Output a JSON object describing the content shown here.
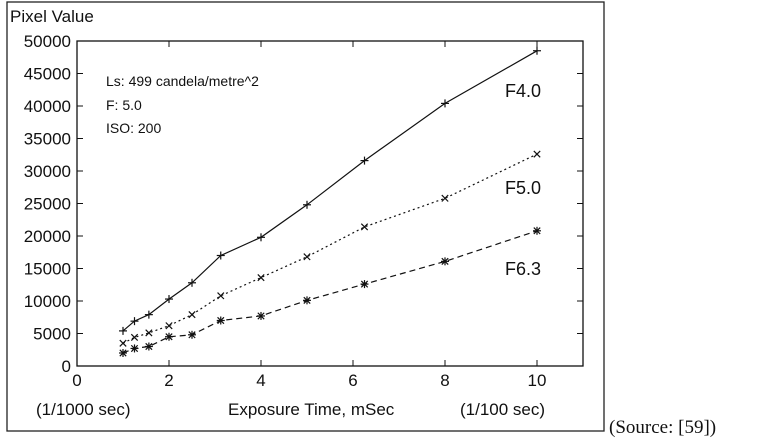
{
  "chart_data": {
    "type": "line",
    "ylabel": "Pixel Value",
    "xlabel": "Exposure Time, mSec",
    "xlabel_left": "(1/1000 sec)",
    "xlabel_right": "(1/100 sec)",
    "xlim": [
      0,
      11
    ],
    "ylim": [
      0,
      50000
    ],
    "xticks": [
      0,
      2,
      4,
      6,
      8,
      10
    ],
    "yticks": [
      0,
      5000,
      10000,
      15000,
      20000,
      25000,
      30000,
      35000,
      40000,
      45000,
      50000
    ],
    "grid": false,
    "annotations": [
      "Ls: 499 candela/metre^2",
      "F: 5.0",
      "ISO: 200"
    ],
    "series": [
      {
        "name": "F4.0",
        "line": "solid",
        "marker": "plus",
        "x": [
          1,
          1.25,
          1.5625,
          2,
          2.5,
          3.125,
          4,
          5,
          6.25,
          8,
          10
        ],
        "y": [
          5400,
          6900,
          7900,
          10300,
          12800,
          17000,
          19800,
          24800,
          31600,
          40400,
          48500
        ]
      },
      {
        "name": "F5.0",
        "line": "dotted",
        "marker": "cross",
        "x": [
          1,
          1.25,
          1.5625,
          2,
          2.5,
          3.125,
          4,
          5,
          6.25,
          8,
          10
        ],
        "y": [
          3500,
          4400,
          5100,
          6200,
          7900,
          10800,
          13600,
          16800,
          21400,
          25800,
          32600
        ]
      },
      {
        "name": "F6.3",
        "line": "dashed",
        "marker": "star",
        "x": [
          1,
          1.25,
          1.5625,
          2,
          2.5,
          3.125,
          4,
          5,
          6.25,
          8,
          10
        ],
        "y": [
          2000,
          2700,
          3000,
          4500,
          4800,
          7000,
          7700,
          10100,
          12600,
          16100,
          20800
        ]
      }
    ]
  },
  "source_note": "(Source: [59])"
}
